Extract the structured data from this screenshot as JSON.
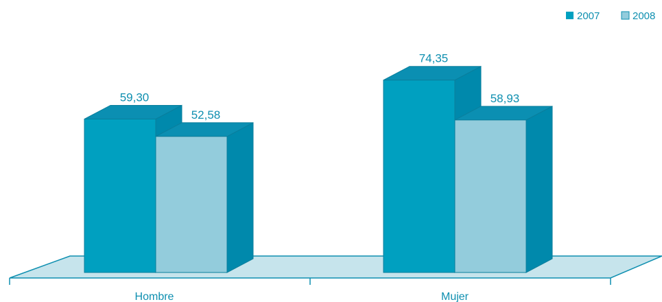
{
  "chart_data": {
    "type": "bar",
    "categories": [
      "Hombre",
      "Mujer"
    ],
    "series": [
      {
        "name": "2007",
        "values": [
          59.3,
          74.35
        ],
        "labels": [
          "59,30",
          "74,35"
        ]
      },
      {
        "name": "2008",
        "values": [
          52.58,
          58.93
        ],
        "labels": [
          "52,58",
          "58,93"
        ]
      }
    ],
    "ylim": [
      0,
      80
    ],
    "grid": false,
    "legend_position": "top-right",
    "colors": {
      "series_2007": "#00A0C0",
      "series_2008": "#93CCDC",
      "floor": "#C6E4EC",
      "text": "#0E8FB0"
    }
  }
}
